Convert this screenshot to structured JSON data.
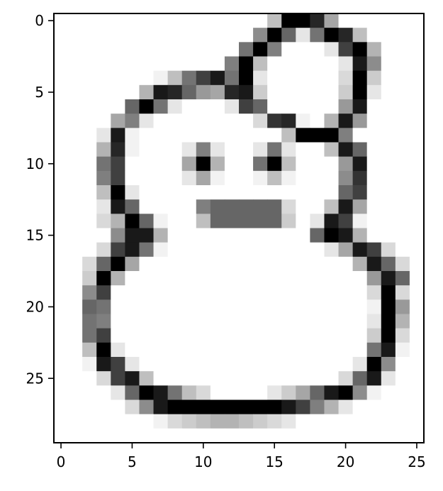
{
  "chart_data": {
    "type": "heatmap",
    "title": "",
    "xlabel": "",
    "ylabel": "",
    "colormap": "gray_r",
    "value_range": [
      0,
      255
    ],
    "xlim": [
      -0.5,
      25.5
    ],
    "ylim": [
      29.5,
      -0.5
    ],
    "x_ticks": [
      0,
      5,
      10,
      15,
      20,
      25
    ],
    "x_tick_labels": [
      "0",
      "5",
      "10",
      "15",
      "20",
      "25"
    ],
    "y_ticks": [
      0,
      5,
      10,
      15,
      20,
      25
    ],
    "y_tick_labels": [
      "0",
      "5",
      "10",
      "15",
      "20",
      "25"
    ],
    "grid": false,
    "rows": [
      [
        0,
        0,
        0,
        0,
        0,
        0,
        0,
        0,
        0,
        0,
        0,
        0,
        0,
        0,
        0,
        64,
        255,
        255,
        217,
        89,
        0,
        0,
        0,
        0,
        0,
        0
      ],
      [
        0,
        0,
        0,
        0,
        0,
        0,
        0,
        0,
        0,
        0,
        0,
        0,
        0,
        0,
        115,
        255,
        153,
        25,
        140,
        255,
        217,
        64,
        0,
        0,
        0,
        0
      ],
      [
        0,
        0,
        0,
        0,
        0,
        0,
        0,
        0,
        0,
        0,
        0,
        0,
        0,
        140,
        255,
        128,
        0,
        0,
        0,
        25,
        191,
        255,
        76,
        0,
        0,
        0
      ],
      [
        0,
        0,
        0,
        0,
        0,
        0,
        0,
        0,
        0,
        0,
        0,
        0,
        128,
        255,
        64,
        0,
        0,
        0,
        0,
        0,
        25,
        230,
        115,
        0,
        0,
        0
      ],
      [
        0,
        0,
        0,
        0,
        0,
        0,
        0,
        13,
        64,
        140,
        191,
        230,
        140,
        255,
        25,
        0,
        0,
        0,
        0,
        0,
        38,
        255,
        51,
        0,
        0,
        0
      ],
      [
        0,
        0,
        0,
        0,
        0,
        0,
        76,
        230,
        217,
        153,
        102,
        89,
        217,
        230,
        51,
        0,
        0,
        0,
        0,
        0,
        51,
        255,
        25,
        0,
        0,
        0
      ],
      [
        0,
        0,
        0,
        0,
        0,
        153,
        255,
        140,
        25,
        0,
        0,
        0,
        25,
        191,
        153,
        0,
        0,
        0,
        0,
        0,
        102,
        230,
        0,
        0,
        0,
        0
      ],
      [
        0,
        0,
        0,
        0,
        89,
        128,
        25,
        0,
        0,
        0,
        0,
        0,
        0,
        0,
        38,
        204,
        217,
        13,
        0,
        76,
        230,
        102,
        0,
        0,
        0,
        0
      ],
      [
        0,
        0,
        0,
        25,
        230,
        13,
        0,
        0,
        0,
        0,
        0,
        0,
        0,
        0,
        0,
        0,
        64,
        255,
        255,
        255,
        128,
        0,
        0,
        0,
        0,
        0
      ],
      [
        0,
        0,
        0,
        76,
        217,
        13,
        0,
        0,
        0,
        25,
        128,
        25,
        0,
        0,
        25,
        140,
        25,
        0,
        0,
        64,
        230,
        153,
        0,
        0,
        0,
        0
      ],
      [
        0,
        0,
        0,
        140,
        191,
        0,
        0,
        0,
        0,
        89,
        255,
        76,
        0,
        0,
        140,
        255,
        64,
        0,
        0,
        0,
        102,
        230,
        0,
        0,
        0,
        0
      ],
      [
        0,
        0,
        0,
        128,
        191,
        0,
        0,
        0,
        0,
        25,
        89,
        13,
        0,
        0,
        13,
        64,
        13,
        0,
        0,
        0,
        115,
        204,
        0,
        0,
        0,
        0
      ],
      [
        0,
        0,
        0,
        64,
        255,
        25,
        0,
        0,
        0,
        0,
        0,
        0,
        0,
        0,
        0,
        0,
        0,
        0,
        0,
        0,
        153,
        191,
        0,
        0,
        0,
        0
      ],
      [
        0,
        0,
        0,
        25,
        230,
        153,
        0,
        0,
        0,
        0,
        128,
        153,
        153,
        153,
        153,
        153,
        38,
        0,
        0,
        64,
        230,
        89,
        0,
        0,
        0,
        0
      ],
      [
        0,
        0,
        0,
        38,
        76,
        255,
        153,
        13,
        0,
        0,
        64,
        153,
        153,
        153,
        153,
        153,
        51,
        0,
        25,
        230,
        191,
        13,
        0,
        0,
        0,
        0
      ],
      [
        0,
        0,
        0,
        0,
        115,
        230,
        230,
        76,
        0,
        0,
        0,
        0,
        0,
        0,
        0,
        0,
        0,
        0,
        153,
        255,
        230,
        76,
        0,
        0,
        0,
        0
      ],
      [
        0,
        0,
        0,
        38,
        191,
        230,
        140,
        13,
        0,
        0,
        0,
        0,
        0,
        0,
        0,
        0,
        0,
        0,
        0,
        25,
        89,
        230,
        191,
        38,
        0,
        0
      ],
      [
        0,
        0,
        38,
        153,
        255,
        89,
        0,
        0,
        0,
        0,
        0,
        0,
        0,
        0,
        0,
        0,
        0,
        0,
        0,
        0,
        0,
        76,
        230,
        153,
        38,
        0
      ],
      [
        0,
        0,
        51,
        255,
        76,
        0,
        0,
        0,
        0,
        0,
        0,
        0,
        0,
        0,
        0,
        0,
        0,
        0,
        0,
        0,
        0,
        0,
        102,
        230,
        153,
        0
      ],
      [
        0,
        0,
        115,
        191,
        0,
        0,
        0,
        0,
        0,
        0,
        0,
        0,
        0,
        0,
        0,
        0,
        0,
        0,
        0,
        0,
        0,
        0,
        38,
        255,
        38,
        0
      ],
      [
        0,
        0,
        153,
        140,
        0,
        0,
        0,
        0,
        0,
        0,
        0,
        0,
        0,
        0,
        0,
        0,
        0,
        0,
        0,
        0,
        0,
        0,
        13,
        255,
        102,
        0
      ],
      [
        0,
        0,
        140,
        128,
        0,
        0,
        0,
        0,
        0,
        0,
        0,
        0,
        0,
        0,
        0,
        0,
        0,
        0,
        0,
        0,
        0,
        0,
        25,
        255,
        76,
        0
      ],
      [
        0,
        0,
        140,
        191,
        0,
        0,
        0,
        0,
        0,
        0,
        0,
        0,
        0,
        0,
        0,
        0,
        0,
        0,
        0,
        0,
        0,
        0,
        51,
        255,
        38,
        0
      ],
      [
        0,
        0,
        64,
        255,
        25,
        0,
        0,
        0,
        0,
        0,
        0,
        0,
        0,
        0,
        0,
        0,
        0,
        0,
        0,
        0,
        0,
        0,
        140,
        230,
        13,
        0
      ],
      [
        0,
        0,
        13,
        230,
        191,
        25,
        0,
        0,
        0,
        0,
        0,
        0,
        0,
        0,
        0,
        0,
        0,
        0,
        0,
        0,
        0,
        25,
        255,
        115,
        0,
        0
      ],
      [
        0,
        0,
        0,
        38,
        191,
        230,
        64,
        0,
        0,
        0,
        0,
        0,
        0,
        0,
        0,
        0,
        0,
        0,
        0,
        0,
        38,
        153,
        230,
        25,
        0,
        0
      ],
      [
        0,
        0,
        0,
        0,
        25,
        153,
        255,
        230,
        140,
        64,
        38,
        0,
        0,
        0,
        0,
        25,
        51,
        89,
        153,
        230,
        255,
        115,
        13,
        0,
        0,
        0
      ],
      [
        0,
        0,
        0,
        0,
        0,
        38,
        115,
        230,
        255,
        255,
        255,
        255,
        255,
        255,
        255,
        255,
        230,
        191,
        128,
        76,
        25,
        0,
        0,
        0,
        0,
        0
      ],
      [
        0,
        0,
        0,
        0,
        0,
        0,
        0,
        13,
        38,
        51,
        64,
        76,
        76,
        64,
        51,
        38,
        25,
        0,
        0,
        0,
        0,
        0,
        0,
        0,
        0,
        0
      ],
      [
        0,
        0,
        0,
        0,
        0,
        0,
        0,
        0,
        0,
        0,
        0,
        0,
        0,
        0,
        0,
        0,
        0,
        0,
        0,
        0,
        0,
        0,
        0,
        0,
        0,
        0
      ]
    ]
  }
}
